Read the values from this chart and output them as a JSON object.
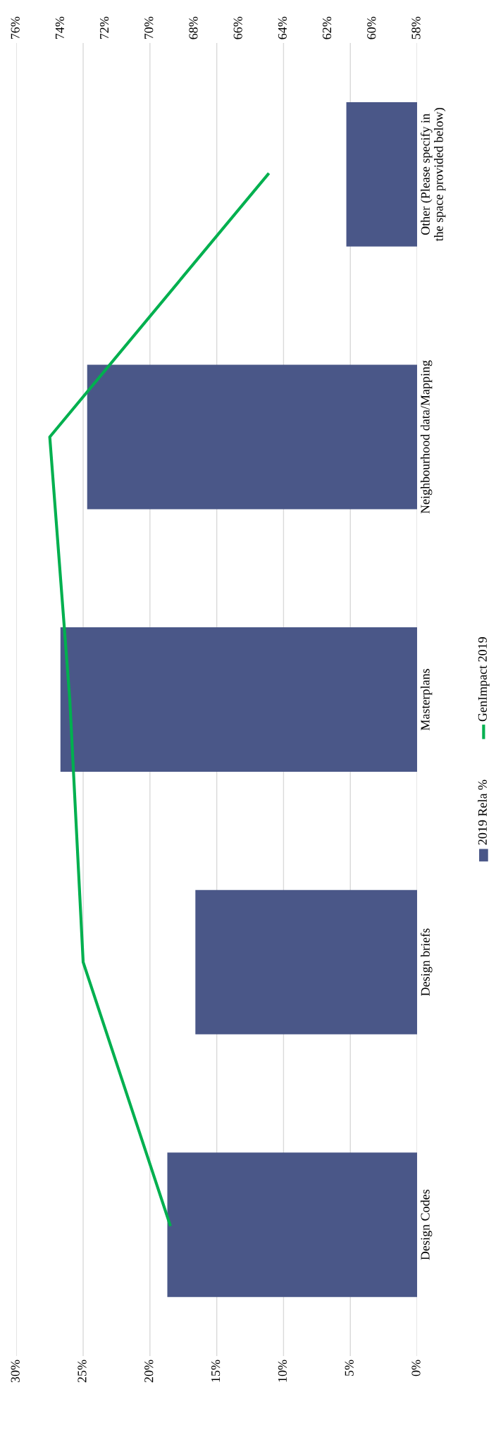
{
  "chart_data": {
    "type": "bar",
    "orientation": "horizontal",
    "categories": [
      "Other (Please specify in the space provided below)",
      "Neighbourhood data/Mapping",
      "Masterplans",
      "Design briefs",
      "Design Codes"
    ],
    "series": [
      {
        "name": "2019 Rela %",
        "color": "#4a5788",
        "values": [
          5.3,
          24.7,
          26.7,
          16.6,
          18.7
        ]
      },
      {
        "name": "GenImpact 2019",
        "type": "line",
        "axis": "x2",
        "color": "#00b04f",
        "values": [
          64.7,
          74.5,
          73.6,
          73.0,
          69.1
        ]
      }
    ],
    "xlim": [
      30,
      0
    ],
    "xticks": [
      {
        "value": 30,
        "label": "30%"
      },
      {
        "value": 25,
        "label": "25%"
      },
      {
        "value": 20,
        "label": "20%"
      },
      {
        "value": 15,
        "label": "15%"
      },
      {
        "value": 10,
        "label": "10%"
      },
      {
        "value": 5,
        "label": "5%"
      },
      {
        "value": 0,
        "label": "0%"
      }
    ],
    "x2lim": [
      76,
      58
    ],
    "x2ticks": [
      {
        "value": 76,
        "label": "76%"
      },
      {
        "value": 74,
        "label": "74%"
      },
      {
        "value": 72,
        "label": "72%"
      },
      {
        "value": 70,
        "label": "70%"
      },
      {
        "value": 68,
        "label": "68%"
      },
      {
        "value": 66,
        "label": "66%"
      },
      {
        "value": 64,
        "label": "64%"
      },
      {
        "value": 62,
        "label": "62%"
      },
      {
        "value": 60,
        "label": "60%"
      },
      {
        "value": 58,
        "label": "58%"
      }
    ],
    "grid": "x",
    "legend": "right",
    "line_style": "solid",
    "marker": "none"
  }
}
